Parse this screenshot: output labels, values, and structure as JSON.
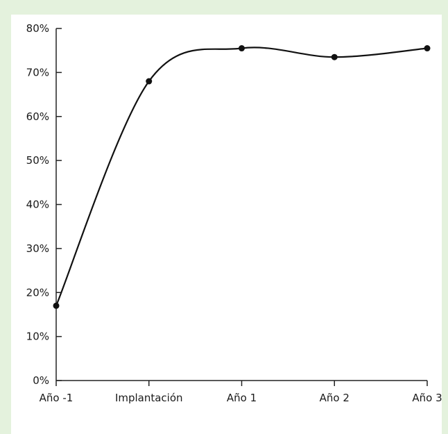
{
  "chart_data": {
    "type": "line",
    "categories": [
      "Año -1",
      "Implantación",
      "Año 1",
      "Año 2",
      "Año 3"
    ],
    "values": [
      17,
      68,
      75.5,
      73.5,
      75.5
    ],
    "y_ticks": [
      "0%",
      "10%",
      "20%",
      "30%",
      "40%",
      "50%",
      "60%",
      "70%",
      "80%"
    ],
    "ylim": [
      0,
      80
    ],
    "title": "",
    "xlabel": "",
    "ylabel": "",
    "grid": false,
    "legend": "none",
    "line_color": "#111111",
    "marker_color": "#111111",
    "background_color": "#e4f2dd"
  }
}
